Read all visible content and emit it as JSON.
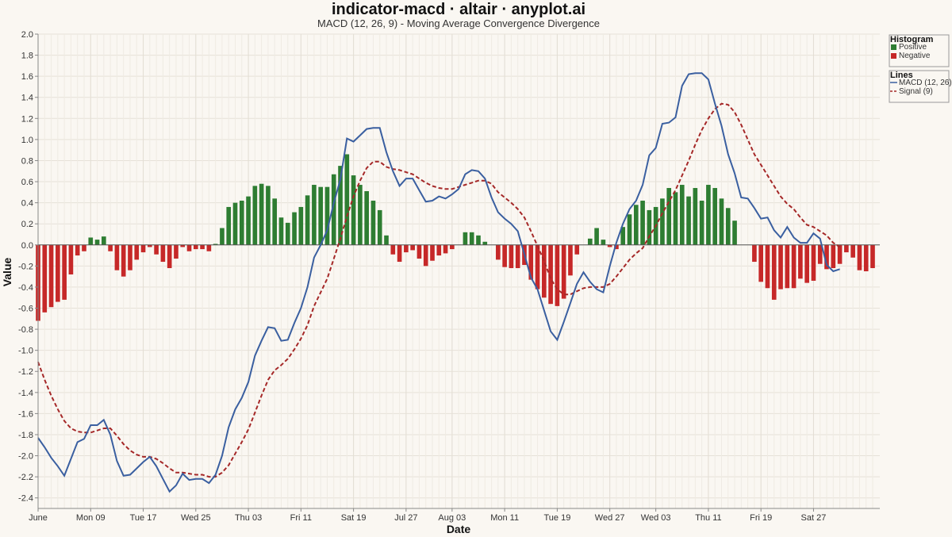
{
  "chart_data": {
    "type": "bar+line",
    "title": "indicator-macd · altair · anyplot.ai",
    "subtitle": "MACD (12, 26, 9) - Moving Average Convergence Divergence",
    "xlabel": "Date",
    "ylabel": "Value",
    "ylim": [
      -2.5,
      2.0
    ],
    "yticks": [
      "2.0",
      "1.8",
      "1.6",
      "1.4",
      "1.2",
      "1.0",
      "0.8",
      "0.6",
      "0.4",
      "0.2",
      "0.0",
      "-0.2",
      "-0.4",
      "-0.6",
      "-0.8",
      "-1.0",
      "-1.2",
      "-1.4",
      "-1.6",
      "-1.8",
      "-2.0",
      "-2.2",
      "-2.4"
    ],
    "xticks": [
      {
        "label": "June",
        "index": 0
      },
      {
        "label": "Mon 09",
        "index": 8
      },
      {
        "label": "Tue 17",
        "index": 16
      },
      {
        "label": "Wed 25",
        "index": 24
      },
      {
        "label": "Thu 03",
        "index": 32
      },
      {
        "label": "Fri 11",
        "index": 40
      },
      {
        "label": "Sat 19",
        "index": 48
      },
      {
        "label": "Jul 27",
        "index": 56
      },
      {
        "label": "Aug 03",
        "index": 63
      },
      {
        "label": "Mon 11",
        "index": 71
      },
      {
        "label": "Tue 19",
        "index": 79
      },
      {
        "label": "Wed 27",
        "index": 87
      },
      {
        "label": "Wed 03",
        "index": 94
      },
      {
        "label": "Thu 11",
        "index": 102
      },
      {
        "label": "Fri 19",
        "index": 110
      },
      {
        "label": "Sat 27",
        "index": 118
      }
    ],
    "grid": true,
    "legend_placement": "top-right",
    "colors": {
      "positive": "#2e7d32",
      "negative": "#c62828",
      "macd": "#3a5fa0",
      "signal": "#a52828"
    },
    "legends": [
      {
        "title": "Histogram",
        "entries": [
          {
            "label": "Positive",
            "kind": "square",
            "color": "#2e7d32"
          },
          {
            "label": "Negative",
            "kind": "square",
            "color": "#c62828"
          }
        ]
      },
      {
        "title": "Lines",
        "entries": [
          {
            "label": "MACD (12, 26)",
            "kind": "line",
            "color": "#3a5fa0"
          },
          {
            "label": "Signal (9)",
            "kind": "dash",
            "color": "#a52828"
          }
        ]
      }
    ],
    "series": [
      {
        "name": "Histogram",
        "kind": "bar",
        "values": [
          -0.72,
          -0.64,
          -0.59,
          -0.54,
          -0.52,
          -0.28,
          -0.1,
          -0.06,
          0.07,
          0.05,
          0.08,
          -0.06,
          -0.24,
          -0.3,
          -0.24,
          -0.14,
          -0.07,
          -0.02,
          -0.09,
          -0.16,
          -0.22,
          -0.13,
          -0.02,
          -0.06,
          -0.04,
          -0.04,
          -0.06,
          0.01,
          0.16,
          0.36,
          0.4,
          0.42,
          0.46,
          0.56,
          0.58,
          0.56,
          0.44,
          0.26,
          0.21,
          0.31,
          0.36,
          0.47,
          0.57,
          0.55,
          0.55,
          0.67,
          0.75,
          0.86,
          0.66,
          0.57,
          0.51,
          0.42,
          0.33,
          0.09,
          -0.09,
          -0.16,
          -0.07,
          -0.05,
          -0.13,
          -0.2,
          -0.15,
          -0.1,
          -0.08,
          -0.04,
          0.0,
          0.12,
          0.12,
          0.09,
          0.03,
          0.0,
          -0.14,
          -0.21,
          -0.22,
          -0.22,
          -0.19,
          -0.33,
          -0.42,
          -0.5,
          -0.56,
          -0.58,
          -0.51,
          -0.29,
          -0.09,
          0.0,
          0.06,
          0.16,
          0.05,
          -0.02,
          -0.04,
          0.17,
          0.29,
          0.38,
          0.42,
          0.33,
          0.36,
          0.44,
          0.54,
          0.5,
          0.57,
          0.46,
          0.54,
          0.42,
          0.57,
          0.54,
          0.44,
          0.35,
          0.23,
          0.0,
          0.0,
          -0.16,
          -0.35,
          -0.41,
          -0.52,
          -0.42,
          -0.41,
          -0.41,
          -0.32,
          -0.36,
          -0.34,
          -0.18,
          -0.23,
          -0.22,
          -0.18,
          -0.07,
          -0.12,
          -0.24,
          -0.25,
          -0.22
        ]
      },
      {
        "name": "MACD (12, 26)",
        "kind": "line",
        "values": [
          -1.83,
          -1.92,
          -2.02,
          -2.1,
          -2.19,
          -2.03,
          -1.87,
          -1.84,
          -1.71,
          -1.71,
          -1.66,
          -1.8,
          -2.05,
          -2.19,
          -2.18,
          -2.12,
          -2.06,
          -2.01,
          -2.1,
          -2.22,
          -2.34,
          -2.28,
          -2.17,
          -2.23,
          -2.22,
          -2.22,
          -2.26,
          -2.18,
          -2.0,
          -1.73,
          -1.56,
          -1.45,
          -1.3,
          -1.05,
          -0.91,
          -0.78,
          -0.79,
          -0.91,
          -0.9,
          -0.74,
          -0.6,
          -0.4,
          -0.12,
          0.0,
          0.14,
          0.4,
          0.62,
          1.01,
          0.98,
          1.04,
          1.1,
          1.11,
          1.11,
          0.88,
          0.7,
          0.56,
          0.63,
          0.63,
          0.52,
          0.41,
          0.42,
          0.46,
          0.44,
          0.48,
          0.53,
          0.67,
          0.71,
          0.7,
          0.63,
          0.45,
          0.31,
          0.25,
          0.2,
          0.13,
          -0.09,
          -0.31,
          -0.42,
          -0.62,
          -0.82,
          -0.9,
          -0.73,
          -0.55,
          -0.37,
          -0.26,
          -0.35,
          -0.42,
          -0.45,
          -0.2,
          0.02,
          0.2,
          0.34,
          0.42,
          0.57,
          0.85,
          0.92,
          1.15,
          1.16,
          1.21,
          1.51,
          1.62,
          1.63,
          1.63,
          1.57,
          1.34,
          1.13,
          0.86,
          0.68,
          0.45,
          0.44,
          0.35,
          0.25,
          0.26,
          0.14,
          0.07,
          0.17,
          0.07,
          0.02,
          0.02,
          0.11,
          0.06,
          -0.19,
          -0.25,
          -0.23
        ]
      },
      {
        "name": "Signal (9)",
        "kind": "line",
        "values": [
          -1.11,
          -1.28,
          -1.43,
          -1.56,
          -1.67,
          -1.74,
          -1.77,
          -1.78,
          -1.78,
          -1.76,
          -1.74,
          -1.74,
          -1.81,
          -1.89,
          -1.95,
          -1.99,
          -2.01,
          -2.01,
          -2.03,
          -2.07,
          -2.12,
          -2.16,
          -2.16,
          -2.17,
          -2.18,
          -2.18,
          -2.2,
          -2.2,
          -2.16,
          -2.09,
          -1.98,
          -1.87,
          -1.75,
          -1.59,
          -1.43,
          -1.28,
          -1.19,
          -1.14,
          -1.08,
          -0.99,
          -0.89,
          -0.76,
          -0.58,
          -0.45,
          -0.32,
          -0.13,
          0.06,
          0.27,
          0.46,
          0.61,
          0.73,
          0.79,
          0.79,
          0.74,
          0.72,
          0.71,
          0.69,
          0.67,
          0.63,
          0.59,
          0.56,
          0.54,
          0.53,
          0.53,
          0.55,
          0.57,
          0.59,
          0.61,
          0.61,
          0.58,
          0.5,
          0.45,
          0.4,
          0.34,
          0.26,
          0.13,
          -0.01,
          -0.15,
          -0.32,
          -0.42,
          -0.47,
          -0.47,
          -0.44,
          -0.41,
          -0.4,
          -0.4,
          -0.4,
          -0.37,
          -0.3,
          -0.22,
          -0.14,
          -0.08,
          -0.03,
          0.08,
          0.18,
          0.3,
          0.41,
          0.52,
          0.66,
          0.8,
          0.95,
          1.09,
          1.2,
          1.29,
          1.34,
          1.33,
          1.26,
          1.14,
          1.0,
          0.86,
          0.76,
          0.66,
          0.56,
          0.46,
          0.39,
          0.34,
          0.26,
          0.19,
          0.17,
          0.13,
          0.09,
          0.02,
          -0.02
        ]
      }
    ]
  }
}
